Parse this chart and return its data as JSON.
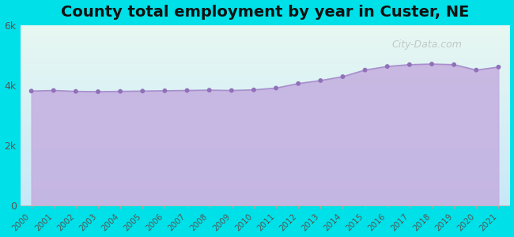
{
  "title": "County total employment by year in Custer, NE",
  "years": [
    2000,
    2001,
    2002,
    2003,
    2004,
    2005,
    2006,
    2007,
    2008,
    2009,
    2010,
    2011,
    2012,
    2013,
    2014,
    2015,
    2016,
    2017,
    2018,
    2019,
    2020,
    2021
  ],
  "values": [
    3800,
    3820,
    3790,
    3780,
    3790,
    3800,
    3810,
    3820,
    3830,
    3820,
    3840,
    3900,
    4050,
    4150,
    4280,
    4500,
    4620,
    4680,
    4700,
    4680,
    4500,
    4600
  ],
  "line_color": "#a890cc",
  "fill_color": "#c4aee0",
  "fill_alpha": 0.85,
  "marker_color": "#9070b8",
  "marker_size": 18,
  "background_outer": "#00e0e8",
  "bg_top_color": "#e8f8f2",
  "bg_bottom_color": "#c8e8f8",
  "title_fontsize": 14,
  "title_fontweight": "bold",
  "ylim": [
    0,
    6000
  ],
  "yticks": [
    0,
    2000,
    4000,
    6000
  ],
  "ytick_labels": [
    "0",
    "2k",
    "4k",
    "6k"
  ],
  "watermark": "City-Data.com",
  "watermark_color": "#aaaaaa",
  "watermark_alpha": 0.6
}
